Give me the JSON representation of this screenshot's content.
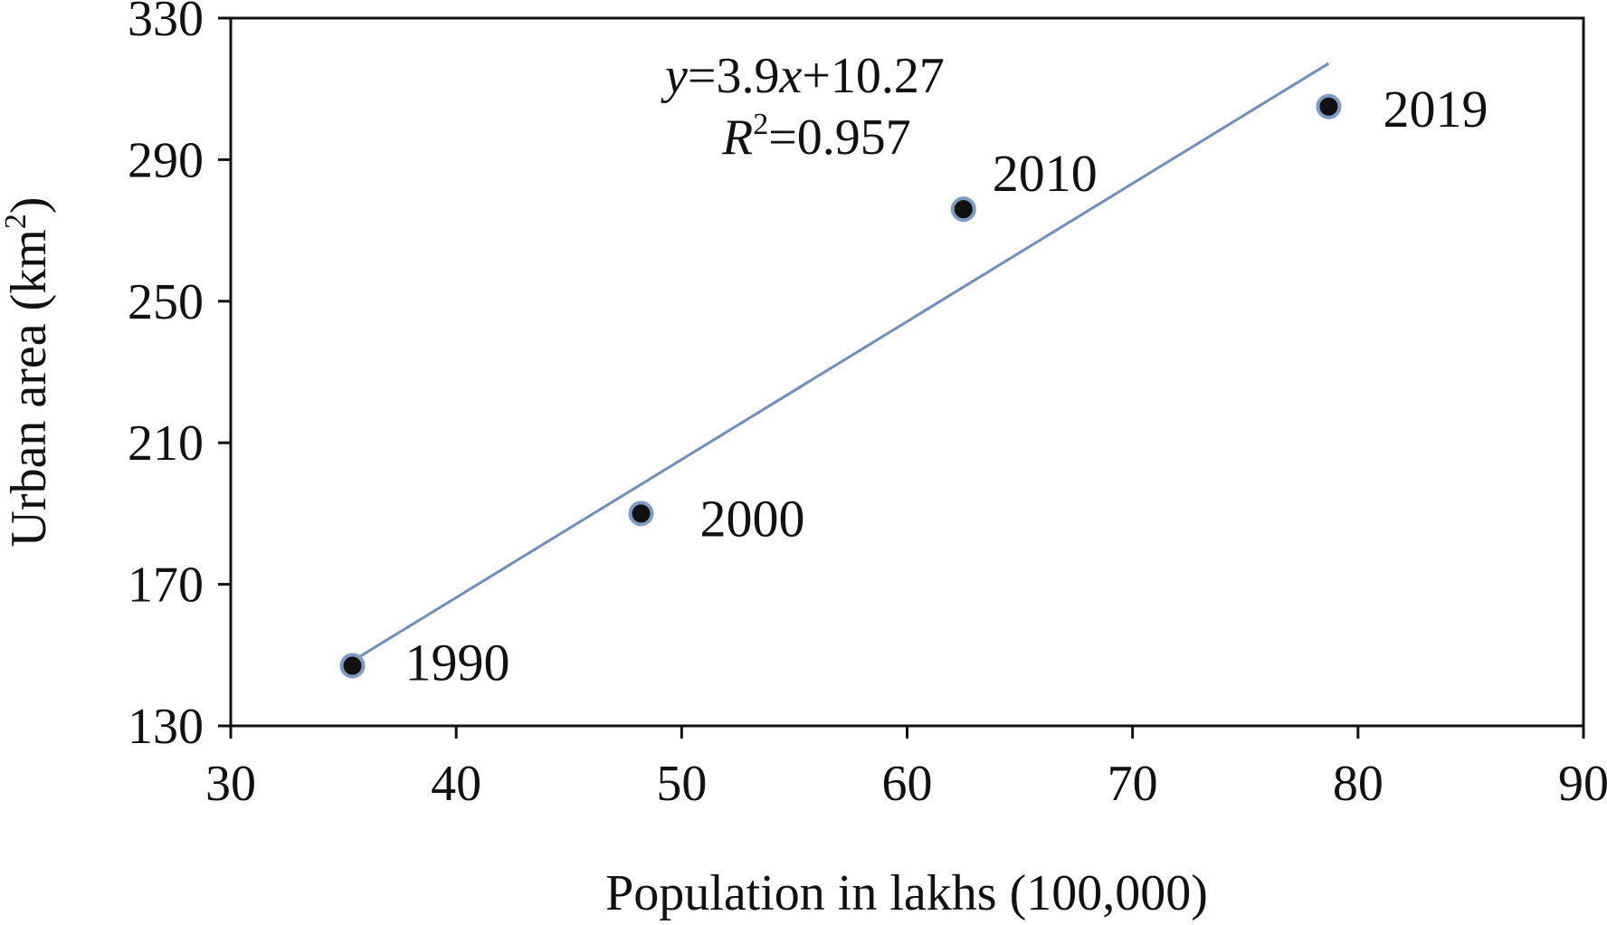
{
  "chart_data": {
    "type": "scatter",
    "xlabel": "Population in lakhs (100,000)",
    "ylabel_main": "Urban area (km",
    "ylabel_sup": "2",
    "ylabel_end": ")",
    "xlim": [
      30,
      90
    ],
    "ylim": [
      130,
      330
    ],
    "xticks": [
      30,
      40,
      50,
      60,
      70,
      80,
      90
    ],
    "yticks": [
      130,
      170,
      210,
      250,
      290,
      330
    ],
    "points": [
      {
        "label": "1990",
        "x": 35.4,
        "y": 147
      },
      {
        "label": "2000",
        "x": 48.2,
        "y": 190
      },
      {
        "label": "2010",
        "x": 62.5,
        "y": 276
      },
      {
        "label": "2019",
        "x": 78.7,
        "y": 305
      }
    ],
    "trendline": {
      "slope": 3.9,
      "intercept": 10.27,
      "x_start": 35.4,
      "x_end": 78.7,
      "color": "#6f8fbe"
    },
    "equation": {
      "y": "y",
      "eq1": "=3.9",
      "x": "x",
      "eq2": "+10.27",
      "r": "R",
      "r_sup": "2",
      "r_val": "=0.957"
    },
    "marker_fill": "#111111",
    "marker_stroke": "#7d9cc8",
    "grid": false
  }
}
